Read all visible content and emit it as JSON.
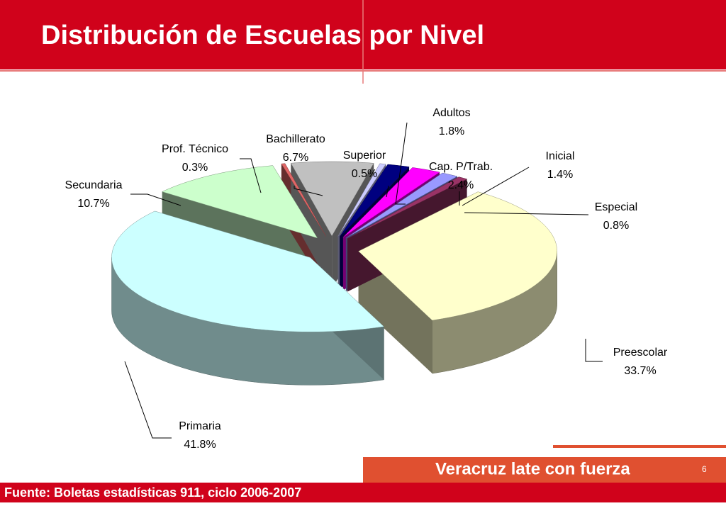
{
  "chart_data": {
    "type": "pie3d",
    "title": "Distribución de Escuelas por Nivel",
    "categories": [
      "Preescolar",
      "Primaria",
      "Secundaria",
      "Prof. Técnico",
      "Bachillerato",
      "Superior",
      "Adultos",
      "Cap. P/Trab.",
      "Inicial",
      "Especial"
    ],
    "values": [
      33.7,
      41.8,
      10.7,
      0.3,
      6.7,
      0.5,
      1.8,
      2.4,
      1.4,
      0.8
    ],
    "value_labels": [
      "33.7%",
      "41.8%",
      "10.7%",
      "0.3%",
      "6.7%",
      "0.5%",
      "1.8%",
      "2.4%",
      "1.4%",
      "0.8%"
    ],
    "colors": [
      "#ffffcc",
      "#ccffff",
      "#ccffcc",
      "#e06666",
      "#c0c0c0",
      "#ccccff",
      "#000080",
      "#ff00ff",
      "#9999ff",
      "#993366"
    ]
  },
  "brand": "Veracruz late con fuerza",
  "page_number": 6,
  "source": "Fuente: Boletas estadísticas 911, ciclo 2006-2007"
}
